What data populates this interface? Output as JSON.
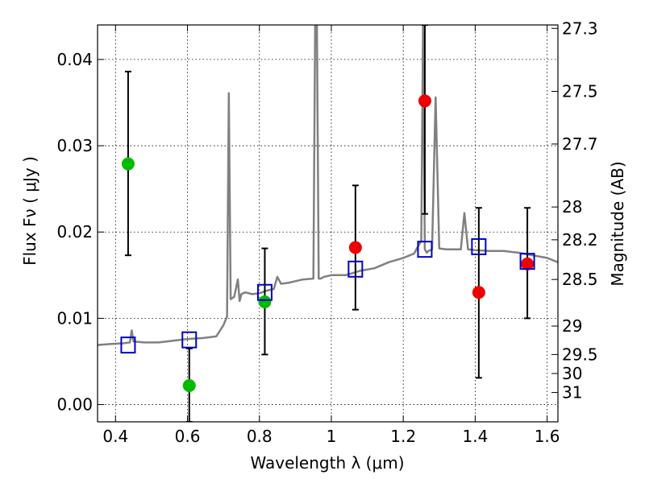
{
  "chart_data": {
    "type": "scatter",
    "xlabel": "Wavelength  λ (μm)",
    "ylabel": "Flux  Fν  ( μJy )",
    "y2label": "Magnitude (AB)",
    "xlim": [
      0.35,
      1.63
    ],
    "ylim": [
      -0.002,
      0.044
    ],
    "grid": true,
    "x_ticks": [
      0.4,
      0.6,
      0.8,
      1.0,
      1.2,
      1.4,
      1.6
    ],
    "x_tick_labels": [
      "0.4",
      "0.6",
      "0.8",
      "1",
      "1.2",
      "1.4",
      "1.6"
    ],
    "y_ticks": [
      0.0,
      0.01,
      0.02,
      0.03,
      0.04
    ],
    "y_tick_labels": [
      "0.00",
      "0.01",
      "0.02",
      "0.03",
      "0.04"
    ],
    "y2_ticks": [
      {
        "label": "27.3",
        "flux": 0.0436
      },
      {
        "label": "27.5",
        "flux": 0.0363
      },
      {
        "label": "27.7",
        "flux": 0.0302
      },
      {
        "label": "28",
        "flux": 0.0229
      },
      {
        "label": "28.2",
        "flux": 0.0191
      },
      {
        "label": "28.5",
        "flux": 0.0145
      },
      {
        "label": "29",
        "flux": 0.0091
      },
      {
        "label": "29.5",
        "flux": 0.0058
      },
      {
        "label": "30",
        "flux": 0.0036
      },
      {
        "label": "31",
        "flux": 0.0014
      }
    ],
    "series": [
      {
        "type": "line",
        "color": "#808080",
        "x": [
          0.35,
          0.38,
          0.42,
          0.44,
          0.445,
          0.45,
          0.48,
          0.52,
          0.56,
          0.6,
          0.64,
          0.68,
          0.7,
          0.71,
          0.715,
          0.72,
          0.73,
          0.74,
          0.745,
          0.75,
          0.76,
          0.78,
          0.8,
          0.82,
          0.84,
          0.85,
          0.86,
          0.88,
          0.9,
          0.92,
          0.95,
          0.955,
          0.96,
          0.965,
          0.97,
          0.98,
          1.0,
          1.04,
          1.08,
          1.12,
          1.16,
          1.2,
          1.23,
          1.25,
          1.255,
          1.26,
          1.265,
          1.27,
          1.28,
          1.29,
          1.3,
          1.32,
          1.36,
          1.37,
          1.38,
          1.4,
          1.44,
          1.48,
          1.52,
          1.56,
          1.6,
          1.63
        ],
        "y": [
          0.0069,
          0.007,
          0.0071,
          0.0072,
          0.0086,
          0.0073,
          0.0072,
          0.0072,
          0.0074,
          0.0076,
          0.0077,
          0.0079,
          0.0092,
          0.0102,
          0.0361,
          0.0122,
          0.0125,
          0.0145,
          0.012,
          0.0128,
          0.013,
          0.0128,
          0.0129,
          0.0132,
          0.0134,
          0.0148,
          0.014,
          0.0141,
          0.0143,
          0.0145,
          0.0146,
          0.044,
          0.044,
          0.0146,
          0.0146,
          0.0148,
          0.015,
          0.015,
          0.0155,
          0.0158,
          0.0165,
          0.017,
          0.0175,
          0.019,
          0.044,
          0.018,
          0.0176,
          0.0178,
          0.018,
          0.0356,
          0.0181,
          0.018,
          0.018,
          0.0222,
          0.018,
          0.0179,
          0.0178,
          0.0178,
          0.0176,
          0.0173,
          0.017,
          0.0165
        ]
      },
      {
        "type": "scatter",
        "color": "#00bb00",
        "x": [
          0.435,
          0.605,
          0.815
        ],
        "y": [
          0.0279,
          0.0022,
          0.0119
        ],
        "yerr_low": [
          0.0173,
          -0.002,
          0.0058
        ],
        "yerr_high": [
          0.0386,
          0.0065,
          0.0181
        ]
      },
      {
        "type": "scatter",
        "color": "#ee0000",
        "x": [
          1.067,
          1.26,
          1.41,
          1.545
        ],
        "y": [
          0.0182,
          0.0352,
          0.013,
          0.0163
        ],
        "yerr_low": [
          0.011,
          0.0221,
          0.0031,
          0.01
        ],
        "yerr_high": [
          0.0254,
          0.044,
          0.0228,
          0.0228
        ]
      },
      {
        "type": "scatter",
        "marker": "square",
        "color": "#0000cc",
        "x": [
          0.435,
          0.605,
          0.815,
          1.067,
          1.26,
          1.41,
          1.545
        ],
        "y": [
          0.0069,
          0.0075,
          0.013,
          0.0157,
          0.018,
          0.0183,
          0.0166
        ]
      }
    ]
  }
}
